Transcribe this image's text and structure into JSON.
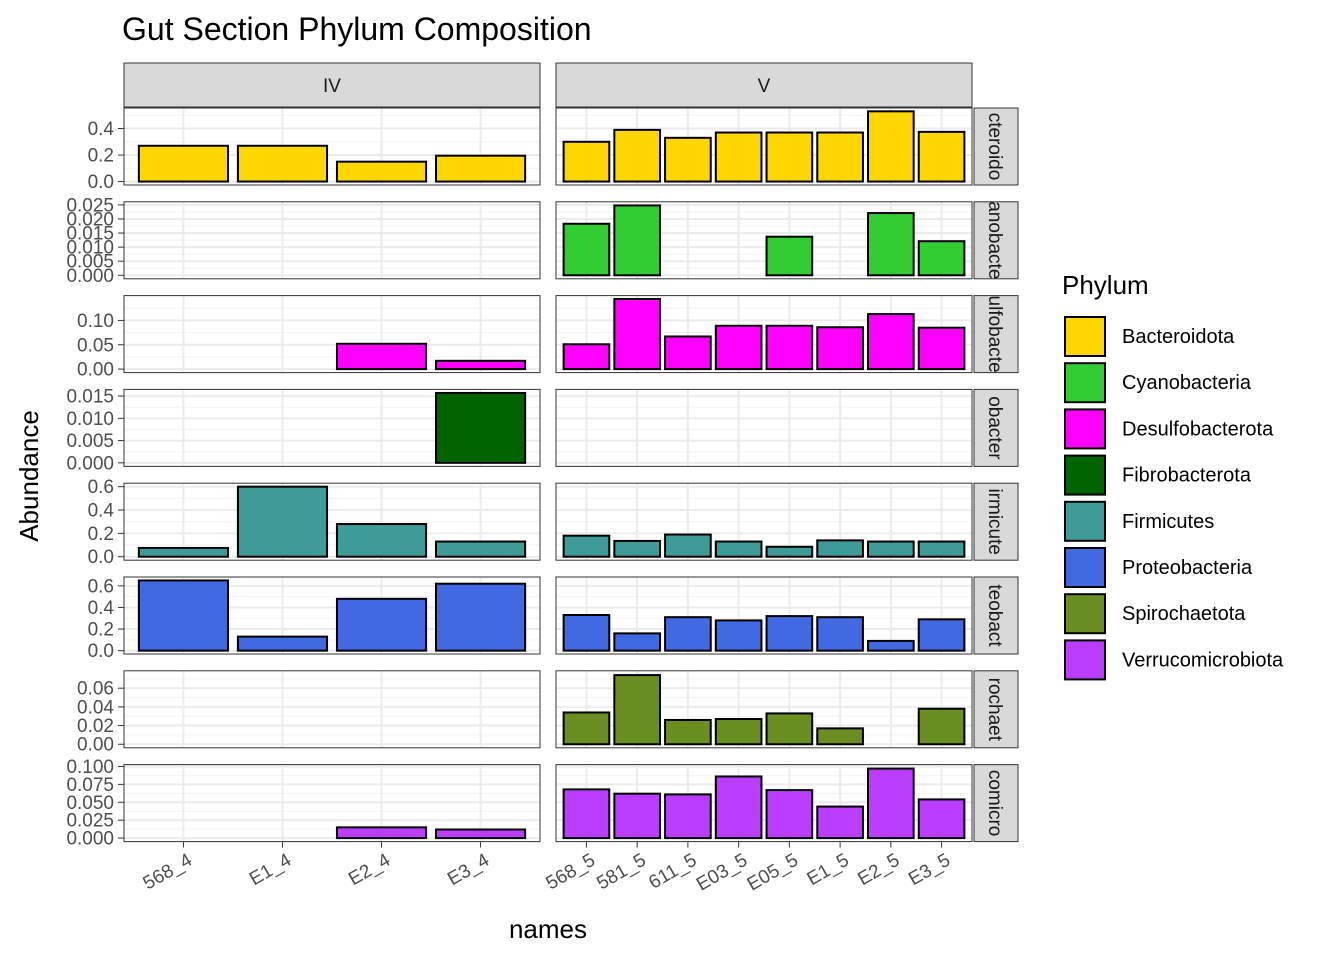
{
  "chart_data": {
    "type": "bar",
    "title": "Gut Section Phylum Composition",
    "xlabel": "names",
    "ylabel": "Abundance",
    "facets_col": [
      {
        "label": "IV",
        "categories": [
          "568_4",
          "E1_4",
          "E2_4",
          "E3_4"
        ]
      },
      {
        "label": "V",
        "categories": [
          "568_5",
          "581_5",
          "611_5",
          "E03_5",
          "E05_5",
          "E1_5",
          "E2_5",
          "E3_5"
        ]
      }
    ],
    "legend": {
      "title": "Phylum",
      "position": "right",
      "entries": [
        {
          "name": "Bacteroidota",
          "color": "#FFD700"
        },
        {
          "name": "Cyanobacteria",
          "color": "#32CD32"
        },
        {
          "name": "Desulfobacterota",
          "color": "#FF00FF"
        },
        {
          "name": "Fibrobacterota",
          "color": "#006400"
        },
        {
          "name": "Firmicutes",
          "color": "#3E9B97"
        },
        {
          "name": "Proteobacteria",
          "color": "#4169E1"
        },
        {
          "name": "Spirochaetota",
          "color": "#6B8E23"
        },
        {
          "name": "Verrucomicrobiota",
          "color": "#BB3DFF"
        }
      ]
    },
    "rows": [
      {
        "strip": "cteroido",
        "phylum": "Bacteroidota",
        "ylim": [
          -0.026,
          0.555
        ],
        "ticks": [
          "0.0",
          "0.2",
          "0.4"
        ],
        "tick_values": [
          0,
          0.2,
          0.4
        ],
        "values": [
          [
            0.27,
            0.27,
            0.15,
            0.195
          ],
          [
            0.3,
            0.39,
            0.33,
            0.37,
            0.37,
            0.37,
            0.53,
            0.375
          ]
        ]
      },
      {
        "strip": "anobacte",
        "phylum": "Cyanobacteria",
        "ylim": [
          -0.00125,
          0.0261
        ],
        "ticks": [
          "0.000",
          "0.005",
          "0.010",
          "0.015",
          "0.020",
          "0.025"
        ],
        "tick_values": [
          0,
          0.005,
          0.01,
          0.015,
          0.02,
          0.025
        ],
        "values": [
          [
            0,
            0,
            0,
            0
          ],
          [
            0.0183,
            0.0248,
            0,
            0,
            0.0137,
            0,
            0.0221,
            0.0121
          ]
        ]
      },
      {
        "strip": "ulfobacte",
        "phylum": "Desulfobacterota",
        "ylim": [
          -0.0072,
          0.151
        ],
        "ticks": [
          "0.00",
          "0.05",
          "0.10"
        ],
        "tick_values": [
          0,
          0.05,
          0.1
        ],
        "values": [
          [
            0,
            0,
            0.052,
            0.017
          ],
          [
            0.051,
            0.144,
            0.067,
            0.089,
            0.089,
            0.086,
            0.113,
            0.085
          ]
        ]
      },
      {
        "strip": "obacter",
        "phylum": "Fibrobacterota",
        "ylim": [
          -0.0008,
          0.0165
        ],
        "ticks": [
          "0.000",
          "0.005",
          "0.010",
          "0.015"
        ],
        "tick_values": [
          0,
          0.005,
          0.01,
          0.015
        ],
        "values": [
          [
            0,
            0,
            0,
            0.0157
          ],
          [
            0,
            0,
            0,
            0,
            0,
            0,
            0,
            0
          ]
        ]
      },
      {
        "strip": "irmicute",
        "phylum": "Firmicutes",
        "ylim": [
          -0.03,
          0.63
        ],
        "ticks": [
          "0.0",
          "0.2",
          "0.4",
          "0.6"
        ],
        "tick_values": [
          0,
          0.2,
          0.4,
          0.6
        ],
        "values": [
          [
            0.075,
            0.6,
            0.28,
            0.13
          ],
          [
            0.18,
            0.135,
            0.19,
            0.13,
            0.085,
            0.14,
            0.13,
            0.13
          ]
        ]
      },
      {
        "strip": "teobact",
        "phylum": "Proteobacteria",
        "ylim": [
          -0.031,
          0.682
        ],
        "ticks": [
          "0.0",
          "0.2",
          "0.4",
          "0.6"
        ],
        "tick_values": [
          0,
          0.2,
          0.4,
          0.6
        ],
        "values": [
          [
            0.65,
            0.13,
            0.48,
            0.62
          ],
          [
            0.33,
            0.16,
            0.31,
            0.28,
            0.32,
            0.31,
            0.09,
            0.29
          ]
        ]
      },
      {
        "strip": "rochaet",
        "phylum": "Spirochaetota",
        "ylim": [
          -0.0038,
          0.0786
        ],
        "ticks": [
          "0.00",
          "0.02",
          "0.04",
          "0.06"
        ],
        "tick_values": [
          0,
          0.02,
          0.04,
          0.06
        ],
        "values": [
          [
            0,
            0,
            0,
            0
          ],
          [
            0.034,
            0.074,
            0.026,
            0.027,
            0.033,
            0.017,
            0,
            0.038
          ]
        ]
      },
      {
        "strip": "comicro",
        "phylum": "Verrucomicrobiota",
        "ylim": [
          -0.0049,
          0.1026
        ],
        "ticks": [
          "0.000",
          "0.025",
          "0.050",
          "0.075",
          "0.100"
        ],
        "tick_values": [
          0,
          0.025,
          0.05,
          0.075,
          0.1
        ],
        "values": [
          [
            0,
            0,
            0.015,
            0.012
          ],
          [
            0.068,
            0.062,
            0.061,
            0.086,
            0.067,
            0.044,
            0.097,
            0.054
          ]
        ]
      }
    ]
  }
}
